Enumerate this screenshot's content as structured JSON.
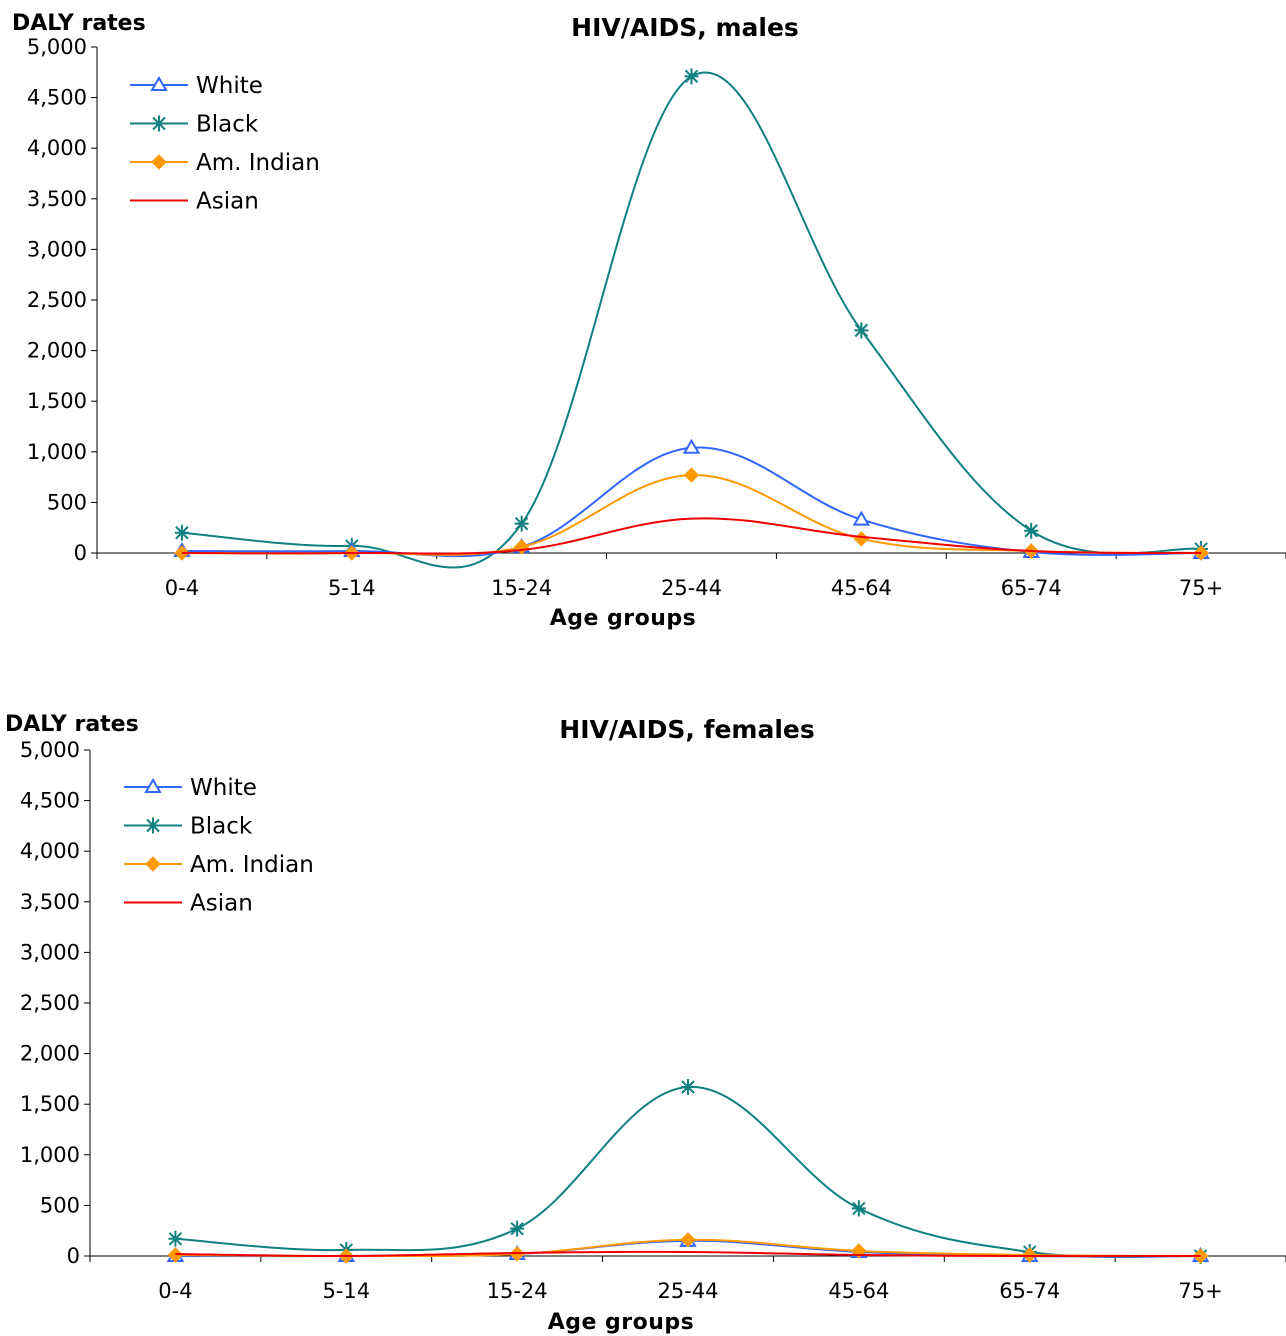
{
  "chart_data": [
    {
      "type": "line",
      "title": "HIV/AIDS, males",
      "xlabel": "Age groups",
      "ylabel": "DALY rates",
      "categories": [
        "0-4",
        "5-14",
        "15-24",
        "25-44",
        "45-64",
        "65-74",
        "75+"
      ],
      "ylim": [
        0,
        5000
      ],
      "yticks": [
        "0",
        "500",
        "1,000",
        "1,500",
        "2,000",
        "2,500",
        "3,000",
        "3,500",
        "4,000",
        "4,500",
        "5,000"
      ],
      "grid": false,
      "legend_position": "top-left",
      "series": [
        {
          "name": "White",
          "values": [
            20,
            20,
            60,
            1040,
            330,
            10,
            0
          ],
          "color": "#3366ff",
          "marker": "triangle"
        },
        {
          "name": "Black",
          "values": [
            200,
            70,
            290,
            4710,
            2200,
            220,
            40
          ],
          "color": "#108080",
          "marker": "star"
        },
        {
          "name": "Am. Indian",
          "values": [
            0,
            0,
            60,
            770,
            140,
            20,
            0
          ],
          "color": "#ff9900",
          "marker": "diamond"
        },
        {
          "name": "Asian",
          "values": [
            0,
            0,
            30,
            340,
            160,
            20,
            0
          ],
          "color": "#ee0000",
          "marker": "none"
        }
      ]
    },
    {
      "type": "line",
      "title": "HIV/AIDS, females",
      "xlabel": "Age groups",
      "ylabel": "DALY rates",
      "categories": [
        "0-4",
        "5-14",
        "15-24",
        "25-44",
        "45-64",
        "65-74",
        "75+"
      ],
      "ylim": [
        0,
        5000
      ],
      "yticks": [
        "0",
        "500",
        "1,000",
        "1,500",
        "2,000",
        "2,500",
        "3,000",
        "3,500",
        "4,000",
        "4,500",
        "5,000"
      ],
      "grid": false,
      "legend_position": "top-left",
      "series": [
        {
          "name": "White",
          "values": [
            0,
            0,
            20,
            150,
            40,
            0,
            0
          ],
          "color": "#3366ff",
          "marker": "triangle"
        },
        {
          "name": "Black",
          "values": [
            170,
            60,
            270,
            1670,
            470,
            40,
            0
          ],
          "color": "#108080",
          "marker": "star"
        },
        {
          "name": "Am. Indian",
          "values": [
            10,
            0,
            20,
            160,
            50,
            10,
            0
          ],
          "color": "#ff9900",
          "marker": "diamond"
        },
        {
          "name": "Asian",
          "values": [
            20,
            0,
            30,
            40,
            10,
            0,
            0
          ],
          "color": "#ee0000",
          "marker": "none"
        }
      ]
    }
  ]
}
